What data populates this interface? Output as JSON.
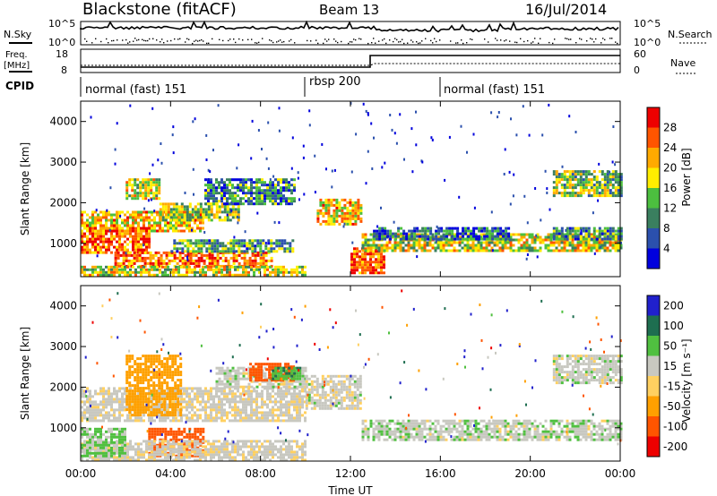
{
  "header": {
    "title": "Blackstone (fitACF)",
    "beam": "Beam 13",
    "date": "16/Jul/2014"
  },
  "panel_labels": {
    "nsky": "N.Sky",
    "nsearch": "N.Search",
    "freq": "Freq.",
    "freq_unit": "[MHz]",
    "nave": "Nave",
    "cpid": "CPID",
    "nsky_ticks": [
      "10^5",
      "10^0"
    ],
    "nsearch_ticks": [
      "10^5",
      "10^0"
    ],
    "freq_ticks": [
      "18",
      "8"
    ],
    "nave_ticks": [
      "60",
      "0"
    ]
  },
  "cpid_segments": [
    {
      "label": "normal (fast) 151",
      "start_hour": 0
    },
    {
      "label": "rbsp 200",
      "start_hour": 10
    },
    {
      "label": "normal (fast) 151",
      "start_hour": 16
    }
  ],
  "colors": {
    "power": [
      "#0000dd",
      "#2b50ad",
      "#3a7f5f",
      "#4cbf3f",
      "#ffee00",
      "#ffaa00",
      "#ff5500",
      "#ee0000"
    ],
    "velocity": [
      "#ee0000",
      "#ff5500",
      "#ffa000",
      "#ffd060",
      "#c8c8c0",
      "#50c040",
      "#1e6e50",
      "#2020cc"
    ]
  },
  "chart_data": [
    {
      "type": "heatmap",
      "name": "power-panel",
      "ylabel": "Slant Range [km]",
      "yticks": [
        1000,
        2000,
        3000,
        4000
      ],
      "ylim": [
        180,
        4500
      ],
      "xlim": [
        0,
        24
      ],
      "colorbar": {
        "label": "Power [dB]",
        "ticks": [
          "4",
          "8",
          "12",
          "16",
          "20",
          "24",
          "28"
        ],
        "range": [
          0,
          32
        ]
      },
      "bands": [
        {
          "t0": 0.0,
          "t1": 5.5,
          "r0": 1300,
          "r1": 1800,
          "level": 0.65
        },
        {
          "t0": 3.5,
          "t1": 7.0,
          "r0": 1600,
          "r1": 2000,
          "level": 0.5
        },
        {
          "t0": 5.5,
          "t1": 9.5,
          "r0": 2000,
          "r1": 2600,
          "level": 0.3
        },
        {
          "t0": 0.0,
          "t1": 3.0,
          "r0": 800,
          "r1": 1400,
          "level": 0.8
        },
        {
          "t0": 1.5,
          "t1": 8.5,
          "r0": 450,
          "r1": 800,
          "level": 0.75
        },
        {
          "t0": 4.0,
          "t1": 9.5,
          "r0": 800,
          "r1": 1100,
          "level": 0.35
        },
        {
          "t0": 0.0,
          "t1": 10.0,
          "r0": 200,
          "r1": 450,
          "level": 0.55
        },
        {
          "t0": 2.0,
          "t1": 3.5,
          "r0": 2100,
          "r1": 2600,
          "level": 0.55
        },
        {
          "t0": 10.5,
          "t1": 12.5,
          "r0": 1500,
          "r1": 2100,
          "level": 0.65
        },
        {
          "t0": 12.0,
          "t1": 13.5,
          "r0": 300,
          "r1": 900,
          "level": 0.85
        },
        {
          "t0": 12.5,
          "t1": 24.0,
          "r0": 800,
          "r1": 1250,
          "level": 0.55
        },
        {
          "t0": 13.0,
          "t1": 19.0,
          "r0": 1100,
          "r1": 1400,
          "level": 0.25
        },
        {
          "t0": 21.0,
          "t1": 24.0,
          "r0": 2200,
          "r1": 2800,
          "level": 0.45
        },
        {
          "t0": 21.0,
          "t1": 24.0,
          "r0": 1100,
          "r1": 1400,
          "level": 0.35
        }
      ]
    },
    {
      "type": "heatmap",
      "name": "velocity-panel",
      "ylabel": "Slant Range [km]",
      "xlabel": "Time UT",
      "xticks": [
        "00:00",
        "04:00",
        "08:00",
        "12:00",
        "16:00",
        "20:00",
        "00:00"
      ],
      "yticks": [
        1000,
        2000,
        3000,
        4000
      ],
      "ylim": [
        180,
        4500
      ],
      "xlim": [
        0,
        24
      ],
      "colorbar": {
        "label": "Velocity [m s⁻¹]",
        "ticks": [
          "-200",
          "-100",
          "-50",
          "-15",
          "15",
          "50",
          "100",
          "200"
        ],
        "range": [
          -250,
          250
        ]
      },
      "bands": [
        {
          "t0": 0.0,
          "t1": 10.0,
          "r0": 1200,
          "r1": 2000,
          "vel": -5
        },
        {
          "t0": 6.0,
          "t1": 10.0,
          "r0": 2000,
          "r1": 2500,
          "vel": 0
        },
        {
          "t0": 2.0,
          "t1": 4.5,
          "r0": 1300,
          "r1": 2800,
          "vel": -70
        },
        {
          "t0": 3.0,
          "t1": 5.5,
          "r0": 300,
          "r1": 1000,
          "vel": -150
        },
        {
          "t0": 0.0,
          "t1": 10.0,
          "r0": 200,
          "r1": 700,
          "vel": -5
        },
        {
          "t0": 7.5,
          "t1": 9.5,
          "r0": 2200,
          "r1": 2600,
          "vel": -120
        },
        {
          "t0": 8.5,
          "t1": 9.7,
          "r0": 2200,
          "r1": 2500,
          "vel": 40
        },
        {
          "t0": 10.0,
          "t1": 12.5,
          "r0": 1500,
          "r1": 2300,
          "vel": -3
        },
        {
          "t0": 12.5,
          "t1": 24.0,
          "r0": 700,
          "r1": 1200,
          "vel": 3
        },
        {
          "t0": 21.0,
          "t1": 24.0,
          "r0": 2100,
          "r1": 2800,
          "vel": 0
        },
        {
          "t0": 0.0,
          "t1": 2.0,
          "r0": 300,
          "r1": 1000,
          "vel": 20
        }
      ]
    }
  ]
}
